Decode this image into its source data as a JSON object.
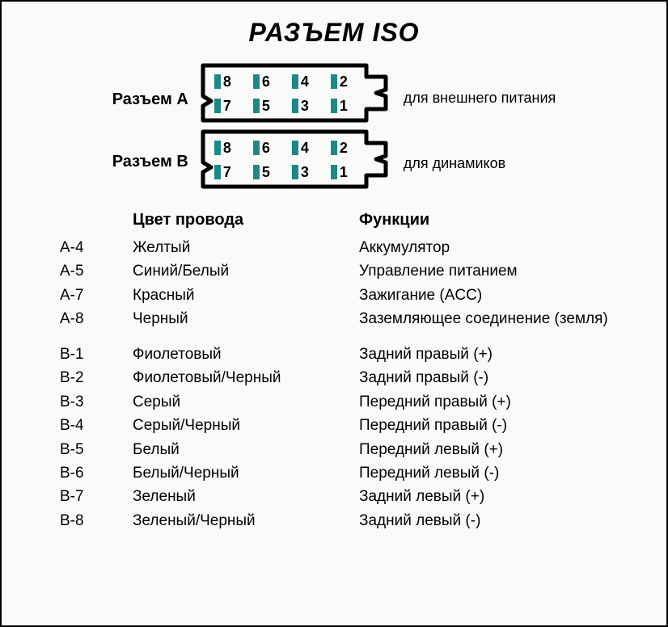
{
  "title": "РАЗЪЕМ ISO",
  "connectors": {
    "A": {
      "label": "Разъем А",
      "note": "для внешнего питания",
      "pin_color": "#1b8a87",
      "outline_color": "#000000",
      "pins_top": [
        "8",
        "6",
        "4",
        "2"
      ],
      "pins_bottom": [
        "7",
        "5",
        "3",
        "1"
      ]
    },
    "B": {
      "label": "Разъем В",
      "note": "для динамиков",
      "pin_color": "#1b8a87",
      "outline_color": "#000000",
      "pins_top": [
        "8",
        "6",
        "4",
        "2"
      ],
      "pins_bottom": [
        "7",
        "5",
        "3",
        "1"
      ]
    }
  },
  "table": {
    "headers": {
      "color": "Цвет провода",
      "func": "Функции"
    },
    "groups": [
      {
        "rows": [
          {
            "pin": "A-4",
            "color": "Желтый",
            "func": "Аккумулятор"
          },
          {
            "pin": "A-5",
            "color": "Синий/Белый",
            "func": "Управление питанием"
          },
          {
            "pin": "A-7",
            "color": "Красный",
            "func": "Зажигание (ACC)"
          },
          {
            "pin": "A-8",
            "color": "Черный",
            "func": "Заземляющее соединение (земля)"
          }
        ]
      },
      {
        "rows": [
          {
            "pin": "B-1",
            "color": "Фиолетовый",
            "func": "Задний правый (+)"
          },
          {
            "pin": "B-2",
            "color": "Фиолетовый/Черный",
            "func": "Задний правый (-)"
          },
          {
            "pin": "B-3",
            "color": "Серый",
            "func": "Передний правый (+)"
          },
          {
            "pin": "B-4",
            "color": "Серый/Черный",
            "func": "Передний правый (-)"
          },
          {
            "pin": "B-5",
            "color": "Белый",
            "func": "Передний левый (+)"
          },
          {
            "pin": "B-6",
            "color": "Белый/Черный",
            "func": "Передний левый (-)"
          },
          {
            "pin": "B-7",
            "color": "Зеленый",
            "func": "Задний левый (+)"
          },
          {
            "pin": "B-8",
            "color": "Зеленый/Черный",
            "func": "Задний левый (-)"
          }
        ]
      }
    ]
  },
  "style": {
    "background": "#fafaf8",
    "border": "#000000",
    "text": "#000000",
    "title_fontsize": 32,
    "body_fontsize": 19
  }
}
